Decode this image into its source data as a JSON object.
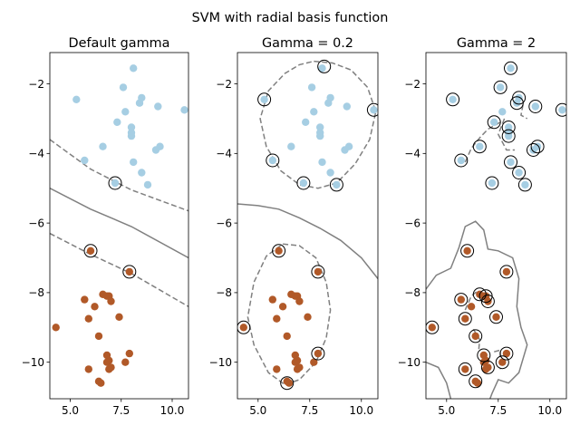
{
  "figure": {
    "title": "SVM with radial basis function"
  },
  "colors": {
    "class_a": "#a6cee3",
    "class_b": "#b15928",
    "support_ring": "#000000",
    "boundary": "#808080",
    "axes": "#000000",
    "background": "#ffffff"
  },
  "chart_data": [
    {
      "type": "scatter",
      "title": "Default gamma",
      "xlim": [
        4.0,
        10.8
      ],
      "ylim": [
        -11.05,
        -1.1
      ],
      "xticks": [
        5.0,
        7.5,
        10.0
      ],
      "xtick_labels": [
        "5.0",
        "7.5",
        "10.0"
      ],
      "yticks": [
        -10,
        -8,
        -6,
        -4,
        -2
      ],
      "ytick_labels": [
        "−10",
        "−8",
        "−6",
        "−4",
        "−2"
      ],
      "grid": false,
      "series": [
        {
          "values": [
            [
              8.1,
              -1.55
            ],
            [
              5.3,
              -2.45
            ],
            [
              7.6,
              -2.1
            ],
            [
              8.5,
              -2.4
            ],
            [
              8.4,
              -2.55
            ],
            [
              9.3,
              -2.65
            ],
            [
              10.6,
              -2.75
            ],
            [
              7.7,
              -2.8
            ],
            [
              7.3,
              -3.1
            ],
            [
              8.0,
              -3.25
            ],
            [
              8.0,
              -3.4
            ],
            [
              8.0,
              -3.5
            ],
            [
              6.6,
              -3.8
            ],
            [
              9.4,
              -3.8
            ],
            [
              9.2,
              -3.9
            ],
            [
              5.7,
              -4.2
            ],
            [
              8.1,
              -4.25
            ],
            [
              8.5,
              -4.55
            ],
            [
              7.2,
              -4.85
            ],
            [
              8.8,
              -4.9
            ]
          ]
        },
        {
          "values": [
            [
              6.0,
              -6.8
            ],
            [
              7.9,
              -7.4
            ],
            [
              5.7,
              -8.2
            ],
            [
              6.6,
              -8.05
            ],
            [
              6.8,
              -8.1
            ],
            [
              6.9,
              -8.1
            ],
            [
              7.0,
              -8.25
            ],
            [
              6.2,
              -8.4
            ],
            [
              5.9,
              -8.75
            ],
            [
              7.4,
              -8.7
            ],
            [
              4.3,
              -9.0
            ],
            [
              6.4,
              -9.25
            ],
            [
              7.9,
              -9.75
            ],
            [
              6.8,
              -9.8
            ],
            [
              6.9,
              -9.95
            ],
            [
              6.8,
              -10.0
            ],
            [
              7.7,
              -10.0
            ],
            [
              7.0,
              -10.15
            ],
            [
              6.9,
              -10.2
            ],
            [
              5.9,
              -10.2
            ],
            [
              6.4,
              -10.55
            ],
            [
              6.5,
              -10.6
            ]
          ]
        }
      ],
      "support_vectors": [
        [
          7.2,
          -4.85
        ],
        [
          6.0,
          -6.8
        ],
        [
          7.9,
          -7.4
        ]
      ],
      "decision_boundary": [
        [
          4.0,
          -5.0
        ],
        [
          6.0,
          -5.6
        ],
        [
          8.0,
          -6.1
        ],
        [
          10.8,
          -7.0
        ]
      ],
      "margins": [
        [
          [
            4.0,
            -3.6
          ],
          [
            6.0,
            -4.45
          ],
          [
            8.0,
            -5.05
          ],
          [
            10.8,
            -5.65
          ]
        ],
        [
          [
            4.0,
            -6.3
          ],
          [
            6.0,
            -6.9
          ],
          [
            8.0,
            -7.45
          ],
          [
            10.8,
            -8.4
          ]
        ]
      ]
    },
    {
      "type": "scatter",
      "title": "Gamma = 0.2",
      "xlim": [
        4.0,
        10.8
      ],
      "ylim": [
        -11.05,
        -1.1
      ],
      "xticks": [
        5.0,
        7.5,
        10.0
      ],
      "xtick_labels": [
        "5.0",
        "7.5",
        "10.0"
      ],
      "yticks": [
        -10,
        -8,
        -6,
        -4,
        -2
      ],
      "ytick_labels": [
        "−10",
        "−8",
        "−6",
        "−4",
        "−2"
      ],
      "grid": false,
      "series": [
        {
          "values": [
            [
              8.1,
              -1.55
            ],
            [
              5.3,
              -2.45
            ],
            [
              7.6,
              -2.1
            ],
            [
              8.5,
              -2.4
            ],
            [
              8.4,
              -2.55
            ],
            [
              9.3,
              -2.65
            ],
            [
              10.6,
              -2.75
            ],
            [
              7.7,
              -2.8
            ],
            [
              7.3,
              -3.1
            ],
            [
              8.0,
              -3.25
            ],
            [
              8.0,
              -3.4
            ],
            [
              8.0,
              -3.5
            ],
            [
              6.6,
              -3.8
            ],
            [
              9.4,
              -3.8
            ],
            [
              9.2,
              -3.9
            ],
            [
              5.7,
              -4.2
            ],
            [
              8.1,
              -4.25
            ],
            [
              8.5,
              -4.55
            ],
            [
              7.2,
              -4.85
            ],
            [
              8.8,
              -4.9
            ]
          ]
        },
        {
          "values": [
            [
              6.0,
              -6.8
            ],
            [
              7.9,
              -7.4
            ],
            [
              5.7,
              -8.2
            ],
            [
              6.6,
              -8.05
            ],
            [
              6.8,
              -8.1
            ],
            [
              6.9,
              -8.1
            ],
            [
              7.0,
              -8.25
            ],
            [
              6.2,
              -8.4
            ],
            [
              5.9,
              -8.75
            ],
            [
              7.4,
              -8.7
            ],
            [
              4.3,
              -9.0
            ],
            [
              6.4,
              -9.25
            ],
            [
              7.9,
              -9.75
            ],
            [
              6.8,
              -9.8
            ],
            [
              6.9,
              -9.95
            ],
            [
              6.8,
              -10.0
            ],
            [
              7.7,
              -10.0
            ],
            [
              7.0,
              -10.15
            ],
            [
              6.9,
              -10.2
            ],
            [
              5.9,
              -10.2
            ],
            [
              6.4,
              -10.55
            ],
            [
              6.5,
              -10.6
            ]
          ]
        }
      ],
      "support_vectors": [
        [
          8.2,
          -1.5
        ],
        [
          5.3,
          -2.45
        ],
        [
          10.6,
          -2.75
        ],
        [
          5.7,
          -4.2
        ],
        [
          7.2,
          -4.85
        ],
        [
          8.8,
          -4.9
        ],
        [
          6.0,
          -6.8
        ],
        [
          7.9,
          -7.4
        ],
        [
          4.3,
          -9.0
        ],
        [
          7.9,
          -9.75
        ],
        [
          6.4,
          -10.6
        ]
      ],
      "decision_boundary": [
        [
          4.0,
          -5.45
        ],
        [
          5.0,
          -5.5
        ],
        [
          6.0,
          -5.6
        ],
        [
          7.0,
          -5.85
        ],
        [
          8.0,
          -6.15
        ],
        [
          9.0,
          -6.5
        ],
        [
          10.0,
          -7.0
        ],
        [
          10.8,
          -7.6
        ]
      ],
      "margins": [
        [
          [
            7.7,
            -1.35
          ],
          [
            8.6,
            -1.4
          ],
          [
            9.5,
            -1.6
          ],
          [
            10.3,
            -2.1
          ],
          [
            10.7,
            -2.8
          ],
          [
            10.4,
            -3.6
          ],
          [
            9.7,
            -4.3
          ],
          [
            8.8,
            -4.85
          ],
          [
            7.9,
            -5.0
          ],
          [
            7.0,
            -4.9
          ],
          [
            6.1,
            -4.5
          ],
          [
            5.4,
            -3.8
          ],
          [
            5.1,
            -3.0
          ],
          [
            5.5,
            -2.2
          ],
          [
            6.3,
            -1.7
          ],
          [
            7.0,
            -1.45
          ],
          [
            7.7,
            -1.35
          ]
        ],
        [
          [
            6.2,
            -6.6
          ],
          [
            7.0,
            -6.65
          ],
          [
            7.8,
            -7.0
          ],
          [
            8.3,
            -7.7
          ],
          [
            8.5,
            -8.5
          ],
          [
            8.3,
            -9.3
          ],
          [
            7.8,
            -10.0
          ],
          [
            7.0,
            -10.5
          ],
          [
            6.3,
            -10.65
          ],
          [
            5.5,
            -10.3
          ],
          [
            4.8,
            -9.5
          ],
          [
            4.5,
            -8.7
          ],
          [
            4.8,
            -7.7
          ],
          [
            5.4,
            -6.95
          ],
          [
            6.2,
            -6.6
          ]
        ]
      ]
    },
    {
      "type": "scatter",
      "title": "Gamma = 2",
      "xlim": [
        4.0,
        10.8
      ],
      "ylim": [
        -11.05,
        -1.1
      ],
      "xticks": [
        5.0,
        7.5,
        10.0
      ],
      "xtick_labels": [
        "5.0",
        "7.5",
        "10.0"
      ],
      "yticks": [
        -10,
        -8,
        -6,
        -4,
        -2
      ],
      "ytick_labels": [
        "−10",
        "−8",
        "−6",
        "−4",
        "−2"
      ],
      "grid": false,
      "series": [
        {
          "values": [
            [
              8.1,
              -1.55
            ],
            [
              5.3,
              -2.45
            ],
            [
              7.6,
              -2.1
            ],
            [
              8.5,
              -2.4
            ],
            [
              8.4,
              -2.55
            ],
            [
              9.3,
              -2.65
            ],
            [
              10.6,
              -2.75
            ],
            [
              7.7,
              -2.8
            ],
            [
              7.3,
              -3.1
            ],
            [
              8.0,
              -3.25
            ],
            [
              8.0,
              -3.4
            ],
            [
              8.0,
              -3.5
            ],
            [
              6.6,
              -3.8
            ],
            [
              9.4,
              -3.8
            ],
            [
              9.2,
              -3.9
            ],
            [
              5.7,
              -4.2
            ],
            [
              8.1,
              -4.25
            ],
            [
              8.5,
              -4.55
            ],
            [
              7.2,
              -4.85
            ],
            [
              8.8,
              -4.9
            ]
          ]
        },
        {
          "values": [
            [
              6.0,
              -6.8
            ],
            [
              7.9,
              -7.4
            ],
            [
              5.7,
              -8.2
            ],
            [
              6.6,
              -8.05
            ],
            [
              6.8,
              -8.1
            ],
            [
              6.9,
              -8.1
            ],
            [
              7.0,
              -8.25
            ],
            [
              6.2,
              -8.4
            ],
            [
              5.9,
              -8.75
            ],
            [
              7.4,
              -8.7
            ],
            [
              4.3,
              -9.0
            ],
            [
              6.4,
              -9.25
            ],
            [
              7.9,
              -9.75
            ],
            [
              6.8,
              -9.8
            ],
            [
              6.9,
              -9.95
            ],
            [
              6.8,
              -10.0
            ],
            [
              7.7,
              -10.0
            ],
            [
              7.0,
              -10.15
            ],
            [
              6.9,
              -10.2
            ],
            [
              5.9,
              -10.2
            ],
            [
              6.4,
              -10.55
            ],
            [
              6.5,
              -10.6
            ]
          ]
        }
      ],
      "support_vectors": [
        [
          8.1,
          -1.55
        ],
        [
          5.3,
          -2.45
        ],
        [
          7.6,
          -2.1
        ],
        [
          8.5,
          -2.4
        ],
        [
          8.4,
          -2.55
        ],
        [
          9.3,
          -2.65
        ],
        [
          10.6,
          -2.75
        ],
        [
          7.3,
          -3.1
        ],
        [
          8.0,
          -3.25
        ],
        [
          8.0,
          -3.5
        ],
        [
          6.6,
          -3.8
        ],
        [
          9.4,
          -3.8
        ],
        [
          9.2,
          -3.9
        ],
        [
          5.7,
          -4.2
        ],
        [
          8.1,
          -4.25
        ],
        [
          8.5,
          -4.55
        ],
        [
          7.2,
          -4.85
        ],
        [
          8.8,
          -4.9
        ],
        [
          6.0,
          -6.8
        ],
        [
          7.9,
          -7.4
        ],
        [
          5.7,
          -8.2
        ],
        [
          6.6,
          -8.05
        ],
        [
          6.9,
          -8.1
        ],
        [
          7.0,
          -8.25
        ],
        [
          5.9,
          -8.75
        ],
        [
          7.4,
          -8.7
        ],
        [
          4.3,
          -9.0
        ],
        [
          6.4,
          -9.25
        ],
        [
          7.9,
          -9.75
        ],
        [
          6.8,
          -9.8
        ],
        [
          7.7,
          -10.0
        ],
        [
          7.0,
          -10.15
        ],
        [
          5.9,
          -10.2
        ],
        [
          6.4,
          -10.55
        ]
      ],
      "decision_boundary": [
        [
          4.0,
          -7.9
        ],
        [
          4.5,
          -7.5
        ],
        [
          5.2,
          -7.3
        ],
        [
          5.6,
          -6.7
        ],
        [
          5.9,
          -6.1
        ],
        [
          6.4,
          -5.95
        ],
        [
          6.8,
          -6.2
        ],
        [
          7.0,
          -6.75
        ],
        [
          7.5,
          -6.8
        ],
        [
          8.2,
          -7.0
        ],
        [
          8.5,
          -7.6
        ],
        [
          8.4,
          -8.4
        ],
        [
          8.6,
          -9.0
        ],
        [
          8.9,
          -9.5
        ],
        [
          8.5,
          -10.3
        ],
        [
          8.0,
          -10.6
        ],
        [
          7.5,
          -10.5
        ],
        [
          7.2,
          -10.9
        ],
        [
          7.1,
          -11.05
        ]
      ],
      "boundary_fragments": [
        [
          [
            4.0,
            -10.0
          ],
          [
            4.6,
            -10.15
          ],
          [
            5.0,
            -10.6
          ],
          [
            5.2,
            -11.05
          ]
        ]
      ],
      "margins": [
        [
          [
            5.9,
            -4.25
          ],
          [
            6.2,
            -3.85
          ],
          [
            6.6,
            -3.55
          ],
          [
            7.0,
            -3.3
          ],
          [
            7.6,
            -3.1
          ]
        ],
        [
          [
            7.8,
            -3.0
          ],
          [
            7.5,
            -3.45
          ],
          [
            7.9,
            -3.9
          ],
          [
            8.3,
            -3.9
          ]
        ],
        [
          [
            8.7,
            -2.6
          ],
          [
            8.6,
            -2.9
          ],
          [
            8.9,
            -3.0
          ]
        ],
        [
          [
            5.9,
            -8.5
          ],
          [
            6.2,
            -8.1
          ],
          [
            6.5,
            -7.95
          ]
        ],
        [
          [
            6.3,
            -9.05
          ],
          [
            6.6,
            -9.35
          ],
          [
            6.55,
            -9.7
          ]
        ],
        [
          [
            7.3,
            -9.7
          ],
          [
            7.6,
            -9.65
          ],
          [
            7.6,
            -10.2
          ]
        ]
      ]
    }
  ]
}
